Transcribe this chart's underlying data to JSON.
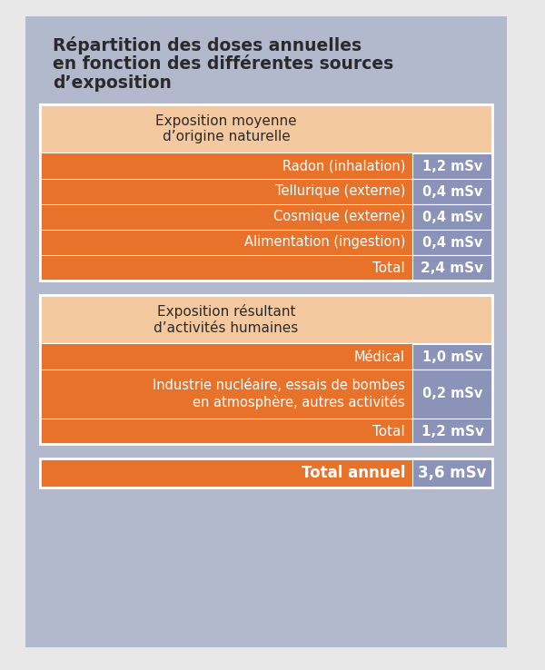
{
  "title_lines": [
    "Répartition des doses annuelles",
    "en fonction des différentes sources",
    "d’exposition"
  ],
  "bg_color": "#b3b9cc",
  "page_bg": "#e8e8e8",
  "orange_dark": "#e8722a",
  "orange_light": "#f5c9a0",
  "blue_value": "#8b93b8",
  "white": "#ffffff",
  "text_dark": "#2a2a2a",
  "section1_header": "Exposition moyenne\nd’origine naturelle",
  "section1_rows": [
    [
      "Radon (inhalation)",
      "1,2 mSv"
    ],
    [
      "Tellurique (externe)",
      "0,4 mSv"
    ],
    [
      "Cosmique (externe)",
      "0,4 mSv"
    ],
    [
      "Alimentation (ingestion)",
      "0,4 mSv"
    ]
  ],
  "section1_total_label": "Total",
  "section1_total_value": "2,4 mSv",
  "section2_header": "Exposition résultant\nd’activités humaines",
  "section2_rows": [
    [
      "Médical",
      "1,0 mSv"
    ],
    [
      "Industrie nucléaire, essais de bombes\nen atmosphère, autres activités",
      "0,2 mSv"
    ]
  ],
  "section2_total_label": "Total",
  "section2_total_value": "1,2 mSv",
  "annual_total_label": "Total annuel",
  "annual_total_value": "3,6 mSv"
}
